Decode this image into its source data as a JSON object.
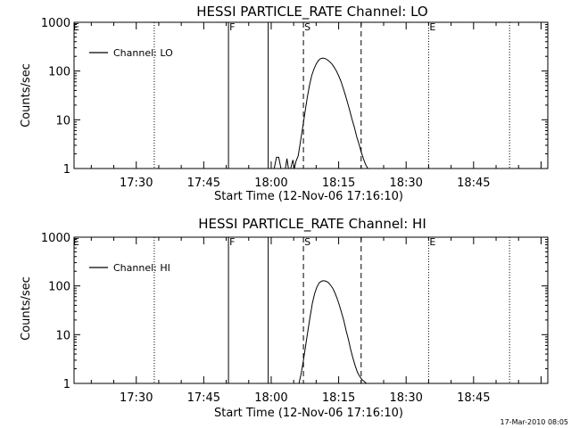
{
  "footer_stamp": "17-Mar-2010 08:05",
  "chart_data": [
    {
      "type": "line",
      "title": "HESSI PARTICLE_RATE Channel: LO",
      "xlabel": "Start Time (12-Nov-06 17:16:10)",
      "ylabel": "Counts/sec",
      "y_scale": "log",
      "ylim": [
        1,
        1000
      ],
      "y_ticks": [
        {
          "value": 1,
          "label": "1"
        },
        {
          "value": 10,
          "label": "10"
        },
        {
          "value": 100,
          "label": "100"
        },
        {
          "value": 1000,
          "label": "1000"
        }
      ],
      "xlim": [
        "17:16:10",
        "19:01:30"
      ],
      "x_ticks": [
        "17:30",
        "17:45",
        "18:00",
        "18:15",
        "18:30",
        "18:45"
      ],
      "legend": {
        "placement": "top-left",
        "entries": [
          "Channel: LO"
        ]
      },
      "markers": [
        {
          "time": "17:34:00",
          "style": "dotted",
          "label": ""
        },
        {
          "time": "17:50:30",
          "style": "solid",
          "label": "F"
        },
        {
          "time": "17:59:20",
          "style": "solid",
          "label": ""
        },
        {
          "time": "18:07:10",
          "style": "dashed",
          "label": "S"
        },
        {
          "time": "18:20:00",
          "style": "dashed",
          "label": ""
        },
        {
          "time": "18:35:00",
          "style": "dotted",
          "label": "E"
        },
        {
          "time": "18:53:00",
          "style": "dotted",
          "label": ""
        }
      ],
      "series": [
        {
          "name": "Channel: LO",
          "x": [
            "18:00:40",
            "18:01:10",
            "18:01:40",
            "18:02:10",
            "18:02:40",
            "18:03:10",
            "18:03:30",
            "18:03:50",
            "18:04:20",
            "18:04:50",
            "18:05:10",
            "18:05:30",
            "18:06:00",
            "18:06:30",
            "18:07:00",
            "18:07:30",
            "18:08:00",
            "18:08:30",
            "18:09:00",
            "18:09:30",
            "18:10:00",
            "18:10:30",
            "18:11:00",
            "18:11:30",
            "18:12:00",
            "18:12:30",
            "18:13:00",
            "18:13:30",
            "18:14:00",
            "18:14:30",
            "18:15:00",
            "18:15:30",
            "18:16:00",
            "18:16:30",
            "18:17:00",
            "18:17:30",
            "18:18:00",
            "18:18:30",
            "18:19:00",
            "18:19:30",
            "18:20:00",
            "18:20:30",
            "18:21:00",
            "18:21:30",
            "18:22:00"
          ],
          "values": [
            1,
            1.7,
            1.7,
            1,
            1,
            1,
            1.6,
            1,
            1,
            1.5,
            1,
            1.4,
            1.8,
            3.5,
            7,
            14,
            28,
            50,
            80,
            110,
            140,
            165,
            180,
            185,
            180,
            170,
            155,
            140,
            120,
            100,
            80,
            62,
            45,
            32,
            22,
            15,
            10,
            7,
            4.5,
            3.2,
            2.2,
            1.6,
            1.2,
            1,
            1
          ]
        }
      ]
    },
    {
      "type": "line",
      "title": "HESSI PARTICLE_RATE Channel: HI",
      "xlabel": "Start Time (12-Nov-06 17:16:10)",
      "ylabel": "Counts/sec",
      "y_scale": "log",
      "ylim": [
        1,
        1000
      ],
      "y_ticks": [
        {
          "value": 1,
          "label": "1"
        },
        {
          "value": 10,
          "label": "10"
        },
        {
          "value": 100,
          "label": "100"
        },
        {
          "value": 1000,
          "label": "1000"
        }
      ],
      "xlim": [
        "17:16:10",
        "19:01:30"
      ],
      "x_ticks": [
        "17:30",
        "17:45",
        "18:00",
        "18:15",
        "18:30",
        "18:45"
      ],
      "legend": {
        "placement": "top-left",
        "entries": [
          "Channel: HI"
        ]
      },
      "markers": [
        {
          "time": "17:34:00",
          "style": "dotted",
          "label": ""
        },
        {
          "time": "17:50:30",
          "style": "solid",
          "label": "F"
        },
        {
          "time": "17:59:20",
          "style": "solid",
          "label": ""
        },
        {
          "time": "18:07:10",
          "style": "dashed",
          "label": "S"
        },
        {
          "time": "18:20:00",
          "style": "dashed",
          "label": ""
        },
        {
          "time": "18:35:00",
          "style": "dotted",
          "label": "E"
        },
        {
          "time": "18:53:00",
          "style": "dotted",
          "label": ""
        }
      ],
      "series": [
        {
          "name": "Channel: HI",
          "x": [
            "18:06:10",
            "18:06:40",
            "18:07:10",
            "18:07:40",
            "18:08:10",
            "18:08:40",
            "18:09:10",
            "18:09:40",
            "18:10:10",
            "18:10:40",
            "18:11:10",
            "18:11:40",
            "18:12:10",
            "18:12:40",
            "18:13:10",
            "18:13:40",
            "18:14:10",
            "18:14:40",
            "18:15:10",
            "18:15:40",
            "18:16:10",
            "18:16:40",
            "18:17:10",
            "18:17:40",
            "18:18:10",
            "18:18:40",
            "18:19:10",
            "18:19:40",
            "18:20:10",
            "18:20:40",
            "18:21:10"
          ],
          "values": [
            1,
            1.6,
            3,
            6,
            12,
            24,
            45,
            70,
            95,
            115,
            125,
            128,
            125,
            118,
            105,
            90,
            72,
            55,
            40,
            28,
            19,
            12,
            8,
            5,
            3.3,
            2.3,
            1.7,
            1.4,
            1.2,
            1.1,
            1
          ]
        }
      ]
    }
  ]
}
